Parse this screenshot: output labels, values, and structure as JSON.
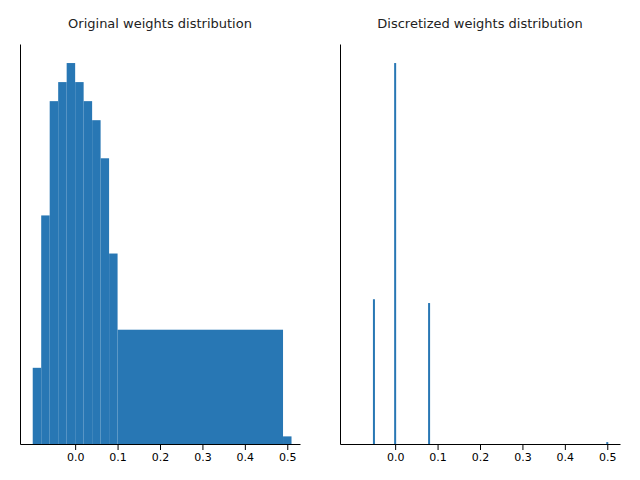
{
  "chart_data": [
    {
      "type": "histogram",
      "title": "Original weights distribution",
      "color": "#2877b4",
      "bins": [
        -0.1,
        -0.08,
        -0.06,
        -0.04,
        -0.02,
        0.0,
        0.02,
        0.04,
        0.06,
        0.08,
        0.1,
        0.49,
        0.51
      ],
      "values": [
        20,
        60,
        90,
        95,
        100,
        95,
        90,
        85,
        75,
        50,
        30,
        2
      ],
      "xlim": [
        -0.13,
        0.53
      ],
      "xticks": [
        {
          "value": 0,
          "label": "0.0"
        },
        0.1,
        0.2,
        0.3,
        0.4,
        0.5
      ],
      "ylim": [
        0,
        105
      ],
      "yticks": [],
      "tick_labels": "x"
    },
    {
      "type": "bar",
      "title": "Discretized weights distribution",
      "color": "#2877b4",
      "x": [
        -0.05,
        0.0,
        0.08,
        0.5
      ],
      "values": [
        38,
        100,
        37,
        0.5
      ],
      "xlim": [
        -0.13,
        0.53
      ],
      "xticks": [
        {
          "value": 0,
          "label": "0.0"
        },
        0.1,
        0.2,
        0.3,
        0.4,
        0.5
      ],
      "ylim": [
        0,
        105
      ],
      "yticks": [],
      "tick_labels": "x"
    }
  ]
}
